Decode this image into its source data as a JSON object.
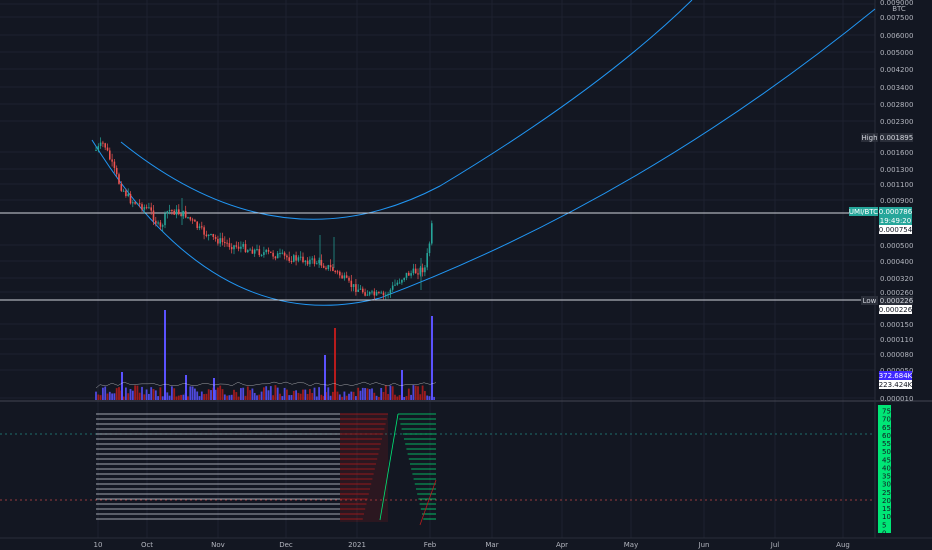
{
  "chart_data": {
    "type": "candlestick",
    "currency_label": "BTC",
    "price_ticks": [
      "0.009000",
      "0.007500",
      "0.006000",
      "0.005000",
      "0.004200",
      "0.003400",
      "0.002800",
      "0.002300",
      "0.001600",
      "0.001300",
      "0.001100",
      "0.000900",
      "0.000500",
      "0.000400",
      "0.000320",
      "0.000260",
      "0.000150",
      "0.000110",
      "0.000080",
      "0.000050",
      "0.000010"
    ],
    "date_ticks": [
      "10",
      "Oct",
      "Nov",
      "Dec",
      "2021",
      "Feb",
      "Mar",
      "Apr",
      "May",
      "Jun",
      "Jul",
      "Aug"
    ],
    "indicator_ticks": [
      "75",
      "70",
      "65",
      "60",
      "55",
      "50",
      "45",
      "40",
      "35",
      "30",
      "25",
      "20",
      "15",
      "10",
      "5",
      "0"
    ],
    "markers": {
      "high_label": "High",
      "high_value": "0.001895",
      "last_symbol": "UMI/BTC",
      "last_value": "0.000786",
      "countdown": "19:49:20",
      "prev_value": "0.000754",
      "low_label": "Low",
      "low_value": "0.000226",
      "low_value_2": "0.000226",
      "volume_value": "372.684K",
      "volume_ma_value": "223.424K"
    },
    "colors": {
      "background": "#131722",
      "up": "#26a69a",
      "down": "#ef5350",
      "arc": "#2196f3",
      "volume_up": "#5b52ff",
      "volume_down": "#b71c1c",
      "indicator_up": "#00e676",
      "indicator_down": "#b71c1c"
    }
  }
}
